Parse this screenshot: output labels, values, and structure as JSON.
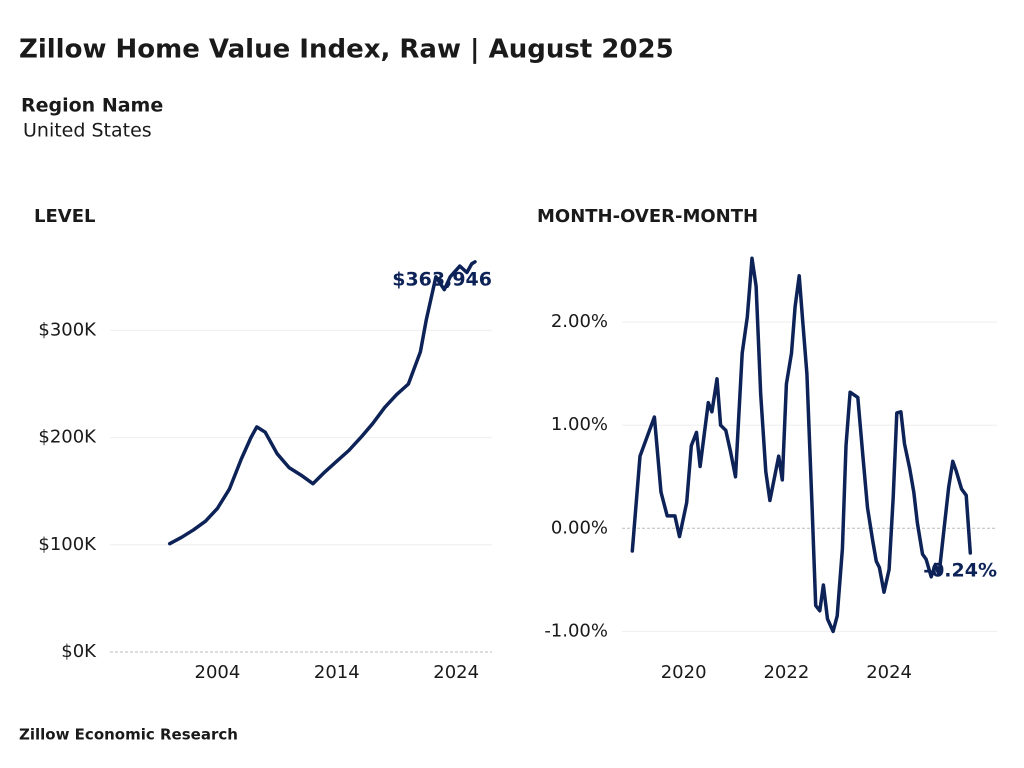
{
  "header": {
    "title": "Zillow Home Value Index, Raw | August 2025",
    "region_label": "Region Name",
    "region_value": "United States",
    "footer": "Zillow Economic Research"
  },
  "chart_data": [
    {
      "type": "line",
      "title": "LEVEL",
      "color": "#0d2257",
      "x": [
        2000,
        2001,
        2002,
        2003,
        2004,
        2005,
        2006,
        2006.8,
        2007.3,
        2008,
        2009,
        2010,
        2011,
        2012,
        2013,
        2014,
        2015,
        2016,
        2017,
        2018,
        2019,
        2020,
        2021,
        2021.5,
        2022.3,
        2023,
        2023.5,
        2024.3,
        2024.9,
        2025.3,
        2025.58
      ],
      "values": [
        101000,
        107000,
        114000,
        122000,
        134000,
        152000,
        180000,
        200000,
        210000,
        205000,
        185000,
        172000,
        165000,
        157000,
        168000,
        178000,
        188000,
        200000,
        213000,
        228000,
        240000,
        250000,
        280000,
        310000,
        350000,
        338000,
        350000,
        360000,
        354000,
        362000,
        363946
      ],
      "value_labels": [
        null,
        null,
        null,
        null,
        null,
        null,
        null,
        null,
        null,
        null,
        null,
        null,
        null,
        null,
        null,
        null,
        null,
        null,
        null,
        null,
        null,
        null,
        null,
        null,
        null,
        null,
        null,
        null,
        null,
        null,
        "$363,946"
      ],
      "xlim": [
        1995,
        2027
      ],
      "xticks": [
        2004,
        2014,
        2024
      ],
      "ylim": [
        0,
        375000
      ],
      "yticks": [
        {
          "value": 0,
          "label": "$0K"
        },
        {
          "value": 100000,
          "label": "$100K"
        },
        {
          "value": 200000,
          "label": "$200K"
        },
        {
          "value": 300000,
          "label": "$300K"
        }
      ],
      "grid": true
    },
    {
      "type": "line",
      "title": "MONTH-OVER-MONTH",
      "color": "#0d2257",
      "x": [
        2019.0,
        2019.15,
        2019.43,
        2019.56,
        2019.68,
        2019.83,
        2019.92,
        2020.06,
        2020.15,
        2020.25,
        2020.32,
        2020.48,
        2020.55,
        2020.65,
        2020.72,
        2020.82,
        2020.91,
        2021.01,
        2021.14,
        2021.24,
        2021.33,
        2021.41,
        2021.5,
        2021.6,
        2021.68,
        2021.77,
        2021.85,
        2021.92,
        2022.0,
        2022.1,
        2022.17,
        2022.25,
        2022.32,
        2022.4,
        2022.5,
        2022.57,
        2022.65,
        2022.72,
        2022.8,
        2022.91,
        2022.99,
        2023.09,
        2023.16,
        2023.24,
        2023.39,
        2023.49,
        2023.58,
        2023.68,
        2023.75,
        2023.81,
        2023.9,
        2024.0,
        2024.08,
        2024.15,
        2024.23,
        2024.3,
        2024.4,
        2024.48,
        2024.55,
        2024.65,
        2024.72,
        2024.82,
        2024.9,
        2024.97,
        2025.07,
        2025.16,
        2025.24,
        2025.31,
        2025.41,
        2025.5,
        2025.58
      ],
      "values": [
        -0.22,
        0.7,
        1.08,
        0.35,
        0.12,
        0.12,
        -0.08,
        0.25,
        0.8,
        0.93,
        0.6,
        1.22,
        1.13,
        1.45,
        1.0,
        0.95,
        0.75,
        0.5,
        1.7,
        2.05,
        2.62,
        2.35,
        1.3,
        0.55,
        0.27,
        0.5,
        0.7,
        0.47,
        1.4,
        1.7,
        2.15,
        2.45,
        2.0,
        1.5,
        0.2,
        -0.75,
        -0.8,
        -0.55,
        -0.88,
        -1.0,
        -0.85,
        -0.2,
        0.8,
        1.32,
        1.27,
        0.7,
        0.2,
        -0.12,
        -0.32,
        -0.38,
        -0.62,
        -0.4,
        0.3,
        1.12,
        1.13,
        0.82,
        0.58,
        0.35,
        0.05,
        -0.25,
        -0.3,
        -0.47,
        -0.35,
        -0.45,
        0.0,
        0.4,
        0.65,
        0.55,
        0.38,
        0.32,
        -0.24
      ],
      "value_labels": [
        null,
        null,
        null,
        null,
        null,
        null,
        null,
        null,
        null,
        null,
        null,
        null,
        null,
        null,
        null,
        null,
        null,
        null,
        null,
        null,
        null,
        null,
        null,
        null,
        null,
        null,
        null,
        null,
        null,
        null,
        null,
        null,
        null,
        null,
        null,
        null,
        null,
        null,
        null,
        null,
        null,
        null,
        null,
        null,
        null,
        null,
        null,
        null,
        null,
        null,
        null,
        null,
        null,
        null,
        null,
        null,
        null,
        null,
        null,
        null,
        null,
        null,
        null,
        null,
        null,
        null,
        null,
        null,
        null,
        null,
        "-0.24%"
      ],
      "xlim": [
        2018.8,
        2026.1
      ],
      "xticks": [
        2020,
        2022,
        2024
      ],
      "ylim": [
        -1.2,
        2.7
      ],
      "yticks": [
        {
          "value": -1,
          "label": "-1.00%"
        },
        {
          "value": 0,
          "label": "0.00%"
        },
        {
          "value": 1,
          "label": "1.00%"
        },
        {
          "value": 2,
          "label": "2.00%"
        }
      ],
      "grid": true
    }
  ]
}
